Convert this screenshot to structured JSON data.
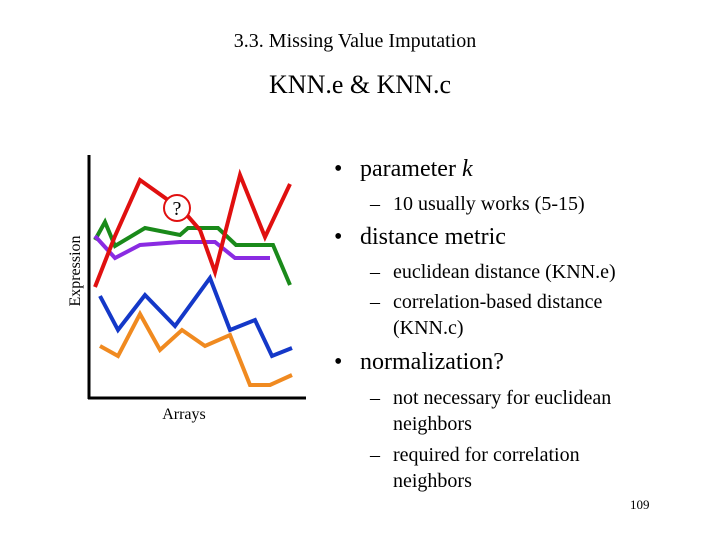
{
  "header": {
    "title": "3.3. Missing Value Imputation",
    "subtitle": "KNN.e & KNN.c"
  },
  "diagram": {
    "y_label": "Expression",
    "x_label": "Arrays",
    "marker": "?"
  },
  "bullets": [
    {
      "text": "parameter",
      "italic": "k",
      "items": [
        "10 usually works (5-15)"
      ]
    },
    {
      "text": "distance metric",
      "items": [
        "euclidean distance (KNN.e)",
        "correlation-based distance (KNN.c)"
      ]
    },
    {
      "text": "normalization?",
      "items": [
        "not necessary for euclidean neighbors",
        "required for correlation neighbors"
      ]
    }
  ],
  "footer": {
    "page": "109"
  }
}
